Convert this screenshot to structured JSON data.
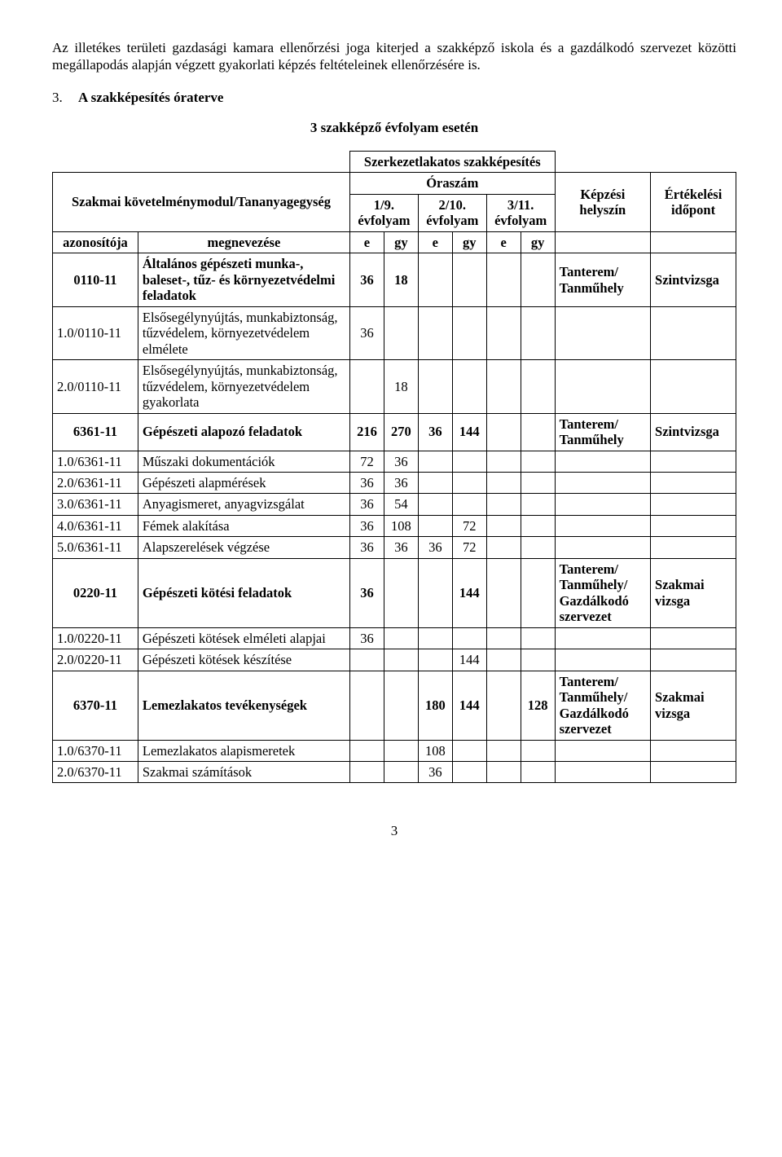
{
  "intro_para": "Az illetékes területi gazdasági kamara ellenőrzési joga kiterjed a szakképző iskola és a gazdálkodó szervezet közötti megállapodás alapján végzett gyakorlati képzés feltételeinek ellenőrzésére is.",
  "heading_num": "3.",
  "heading_text": "A szakképesítés óraterve",
  "subheading": "3 szakképző évfolyam esetén",
  "table": {
    "title": "Szerkezetlakatos szakképesítés",
    "col_module": "Szakmai követelménymodul/Tananyagegység",
    "col_hours": "Óraszám",
    "col_y1": "1/9. évfolyam",
    "col_y2": "2/10. évfolyam",
    "col_y3": "3/11. évfolyam",
    "col_loc": "Képzési helyszín",
    "col_eval": "Értékelési időpont",
    "hdr_id": "azonosítója",
    "hdr_name": "megnevezése",
    "hdr_e": "e",
    "hdr_gy": "gy",
    "loc_tt": "Tanterem/ Tanműhely",
    "loc_ttg": "Tanterem/ Tanműhely/ Gazdálkodó szervezet",
    "eval_szint": "Szintvizsga",
    "eval_szakmai": "Szakmai vizsga",
    "rows": {
      "r0": {
        "id": "0110-11",
        "name": "Általános gépészeti munka-, baleset-, tűz- és környezetvédelmi feladatok",
        "v": [
          "36",
          "18",
          "",
          "",
          "",
          ""
        ]
      },
      "r1": {
        "id": "1.0/0110-11",
        "name": "Elsősegélynyújtás, munkabiztonság, tűzvédelem, környezetvédelem elmélete",
        "v": [
          "36",
          "",
          "",
          "",
          "",
          ""
        ]
      },
      "r2": {
        "id": "2.0/0110-11",
        "name": "Elsősegélynyújtás, munkabiztonság, tűzvédelem, környezetvédelem gyakorlata",
        "v": [
          "",
          "18",
          "",
          "",
          "",
          ""
        ]
      },
      "r3": {
        "id": "6361-11",
        "name": "Gépészeti alapozó feladatok",
        "v": [
          "216",
          "270",
          "36",
          "144",
          "",
          ""
        ]
      },
      "r4": {
        "id": "1.0/6361-11",
        "name": "Műszaki dokumentációk",
        "v": [
          "72",
          "36",
          "",
          "",
          "",
          ""
        ]
      },
      "r5": {
        "id": "2.0/6361-11",
        "name": "Gépészeti alapmérések",
        "v": [
          "36",
          "36",
          "",
          "",
          "",
          ""
        ]
      },
      "r6": {
        "id": "3.0/6361-11",
        "name": "Anyagismeret, anyagvizsgálat",
        "v": [
          "36",
          "54",
          "",
          "",
          "",
          ""
        ]
      },
      "r7": {
        "id": "4.0/6361-11",
        "name": "Fémek alakítása",
        "v": [
          "36",
          "108",
          "",
          "72",
          "",
          ""
        ]
      },
      "r8": {
        "id": "5.0/6361-11",
        "name": "Alapszerelések végzése",
        "v": [
          "36",
          "36",
          "36",
          "72",
          "",
          ""
        ]
      },
      "r9": {
        "id": "0220-11",
        "name": "Gépészeti kötési    feladatok",
        "v": [
          "36",
          "",
          "",
          "144",
          "",
          ""
        ]
      },
      "r10": {
        "id": "1.0/0220-11",
        "name": "Gépészeti kötések elméleti alapjai",
        "v": [
          "36",
          "",
          "",
          "",
          "",
          ""
        ]
      },
      "r11": {
        "id": "2.0/0220-11",
        "name": "Gépészeti kötések készítése",
        "v": [
          "",
          "",
          "",
          "144",
          "",
          ""
        ]
      },
      "r12": {
        "id": "6370-11",
        "name": "Lemezlakatos tevékenységek",
        "v": [
          "",
          "",
          "180",
          "144",
          "",
          "128"
        ]
      },
      "r13": {
        "id": "1.0/6370-11",
        "name": "Lemezlakatos alapismeretek",
        "v": [
          "",
          "",
          "108",
          "",
          "",
          ""
        ]
      },
      "r14": {
        "id": "2.0/6370-11",
        "name": "Szakmai számítások",
        "v": [
          "",
          "",
          "36",
          "",
          "",
          ""
        ]
      }
    }
  },
  "page_number": "3"
}
